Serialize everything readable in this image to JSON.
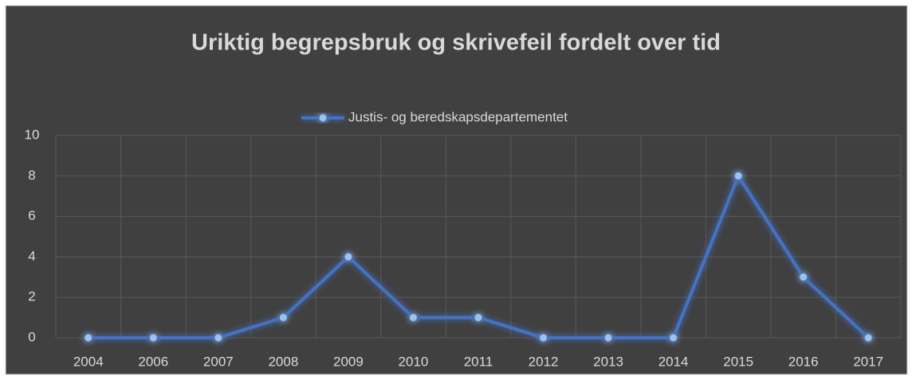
{
  "chart_data": {
    "type": "line",
    "title": "Uriktig begrepsbruk og skrivefeil fordelt over tid",
    "categories": [
      "2004",
      "2006",
      "2007",
      "2008",
      "2009",
      "2010",
      "2011",
      "2012",
      "2013",
      "2014",
      "2015",
      "2016",
      "2017"
    ],
    "series": [
      {
        "name": "Justis- og beredskapsdepartementet",
        "color": "#4472c4",
        "values": [
          0,
          0,
          0,
          1,
          4,
          1,
          1,
          0,
          0,
          0,
          8,
          3,
          0
        ]
      }
    ],
    "ylim": [
      0,
      10
    ],
    "yticks": [
      0,
      2,
      4,
      6,
      8,
      10
    ],
    "grid": true,
    "legend": "top"
  }
}
